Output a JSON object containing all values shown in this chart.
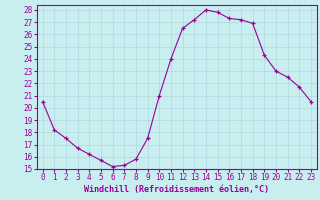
{
  "hours": [
    0,
    1,
    2,
    3,
    4,
    5,
    6,
    7,
    8,
    9,
    10,
    11,
    12,
    13,
    14,
    15,
    16,
    17,
    18,
    19,
    20,
    21,
    22,
    23
  ],
  "values": [
    20.5,
    18.2,
    17.5,
    16.7,
    16.2,
    15.7,
    15.2,
    15.3,
    15.8,
    17.5,
    21.0,
    24.0,
    26.5,
    27.2,
    28.0,
    27.8,
    27.3,
    27.2,
    26.9,
    24.3,
    23.0,
    22.5,
    21.7,
    20.5
  ],
  "line_color": "#990099",
  "marker": "+",
  "bg_color": "#c8eef0",
  "grid_color": "#b0d8dc",
  "xlabel": "Windchill (Refroidissement éolien,°C)",
  "xlim_min": -0.5,
  "xlim_max": 23.5,
  "ylim_min": 15,
  "ylim_max": 28.4,
  "yticks": [
    15,
    16,
    17,
    18,
    19,
    20,
    21,
    22,
    23,
    24,
    25,
    26,
    27,
    28
  ],
  "xticks": [
    0,
    1,
    2,
    3,
    4,
    5,
    6,
    7,
    8,
    9,
    10,
    11,
    12,
    13,
    14,
    15,
    16,
    17,
    18,
    19,
    20,
    21,
    22,
    23
  ],
  "tick_label_color": "#990099",
  "xlabel_color": "#990099",
  "font_size": 5.5,
  "xlabel_font_size": 6.0
}
